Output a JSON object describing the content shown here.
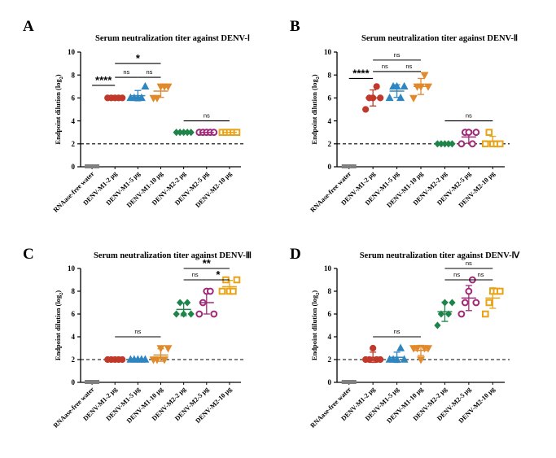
{
  "chart_data": [
    {
      "type": "scatter",
      "panel": "A",
      "title": "Serum neutralization titer against DENV-Ⅰ",
      "ylabel_main": "Endpoint dilution (log",
      "ylabel_sub": "2",
      "ylabel_end": ")",
      "ylim": [
        0,
        10
      ],
      "yticks": [
        "0",
        "2",
        "4",
        "6",
        "8",
        "10"
      ],
      "threshold": 2,
      "categories": [
        "RNAase-free water",
        "DENV-M1-2 μg",
        "DENV-M1-5 μg",
        "DENV-M1-10 μg",
        "DENV-M2-2 μg",
        "DENV-M2-5 μg",
        "DENV-M2-10 μg"
      ],
      "groups": [
        {
          "marker": "bar",
          "color": "#808080",
          "points": [
            0,
            0,
            0,
            0
          ],
          "mean": 0,
          "sd": 0
        },
        {
          "marker": "circle",
          "color": "#c0392b",
          "points": [
            6,
            6,
            6,
            6,
            6
          ],
          "mean": 6,
          "sd": 0
        },
        {
          "marker": "triangle",
          "color": "#2e86c1",
          "points": [
            6,
            6,
            6,
            6,
            7
          ],
          "mean": 6.2,
          "sd": 0.45
        },
        {
          "marker": "tri-down",
          "color": "#e08a2c",
          "points": [
            6,
            6,
            7,
            7,
            7
          ],
          "mean": 6.6,
          "sd": 0.55
        },
        {
          "marker": "diamond",
          "color": "#1e8449",
          "points": [
            3,
            3,
            3,
            3,
            3
          ],
          "mean": 3,
          "sd": 0
        },
        {
          "marker": "hex",
          "color": "#a02878",
          "points": [
            3,
            3,
            3,
            3,
            3
          ],
          "mean": 3,
          "sd": 0
        },
        {
          "marker": "square",
          "color": "#e8a317",
          "points": [
            3,
            3,
            3,
            3,
            3
          ],
          "mean": 3,
          "sd": 0
        }
      ],
      "annotations": [
        {
          "from": 0,
          "to": 1,
          "y": 7.1,
          "text": "****",
          "kind": "star"
        },
        {
          "from": 1,
          "to": 2,
          "y": 7.8,
          "text": "ns",
          "kind": "ns"
        },
        {
          "from": 2,
          "to": 3,
          "y": 7.8,
          "text": "ns",
          "kind": "ns"
        },
        {
          "from": 1,
          "to": 3,
          "y": 9.0,
          "text": "*",
          "kind": "star"
        },
        {
          "from": 4,
          "to": 6,
          "y": 4.0,
          "text": "ns",
          "kind": "ns"
        }
      ]
    },
    {
      "type": "scatter",
      "panel": "B",
      "title": "Serum neutralization titer against DENV-Ⅱ",
      "ylabel_main": "Endpoint dilution (log",
      "ylabel_sub": "2",
      "ylabel_end": ")",
      "ylim": [
        0,
        10
      ],
      "yticks": [
        "0",
        "2",
        "4",
        "6",
        "8",
        "10"
      ],
      "threshold": 2,
      "categories": [
        "RNAase-free water",
        "DENV-M1-2 μg",
        "DENV-M1-5 μg",
        "DENV-M1-10 μg",
        "DENV-M2-2 μg",
        "DENV-M2-5 μg",
        "DENV-M2-10 μg"
      ],
      "groups": [
        {
          "marker": "bar",
          "color": "#808080",
          "points": [
            0,
            0,
            0,
            0
          ],
          "mean": 0,
          "sd": 0
        },
        {
          "marker": "circle",
          "color": "#c0392b",
          "points": [
            5,
            6,
            6,
            7,
            6
          ],
          "mean": 6,
          "sd": 0.7
        },
        {
          "marker": "triangle",
          "color": "#2e86c1",
          "points": [
            6,
            7,
            7,
            6,
            7
          ],
          "mean": 6.6,
          "sd": 0.55
        },
        {
          "marker": "tri-down",
          "color": "#e08a2c",
          "points": [
            6,
            7,
            7,
            8,
            7
          ],
          "mean": 7,
          "sd": 0.7
        },
        {
          "marker": "diamond",
          "color": "#1e8449",
          "points": [
            2,
            2,
            2,
            2,
            2
          ],
          "mean": 2,
          "sd": 0
        },
        {
          "marker": "hex",
          "color": "#a02878",
          "points": [
            2,
            3,
            3,
            2,
            3
          ],
          "mean": 2.6,
          "sd": 0.55
        },
        {
          "marker": "square",
          "color": "#e8a317",
          "points": [
            2,
            3,
            2,
            2,
            2
          ],
          "mean": 2.2,
          "sd": 0.45
        }
      ],
      "annotations": [
        {
          "from": 0,
          "to": 1,
          "y": 7.7,
          "text": "****",
          "kind": "star"
        },
        {
          "from": 1,
          "to": 2,
          "y": 8.3,
          "text": "ns",
          "kind": "ns"
        },
        {
          "from": 2,
          "to": 3,
          "y": 8.3,
          "text": "ns",
          "kind": "ns"
        },
        {
          "from": 1,
          "to": 3,
          "y": 9.3,
          "text": "ns",
          "kind": "ns"
        },
        {
          "from": 4,
          "to": 6,
          "y": 4.0,
          "text": "ns",
          "kind": "ns"
        }
      ]
    },
    {
      "type": "scatter",
      "panel": "C",
      "title": "Serum neutralization titer against DENV-Ⅲ",
      "ylabel_main": "Endpoint dilution (log",
      "ylabel_sub": "2",
      "ylabel_end": ")",
      "ylim": [
        0,
        10
      ],
      "yticks": [
        "0",
        "2",
        "4",
        "6",
        "8",
        "10"
      ],
      "threshold": 2,
      "categories": [
        "RNAase-free water",
        "DENV-M1-2 μg",
        "DENV-M1-5 μg",
        "DENV-M1-10 μg",
        "DENV-M2-2 μg",
        "DENV-M2-5 μg",
        "DENV-M2-10 μg"
      ],
      "groups": [
        {
          "marker": "bar",
          "color": "#808080",
          "points": [
            0,
            0,
            0,
            0
          ],
          "mean": 0,
          "sd": 0
        },
        {
          "marker": "circle",
          "color": "#c0392b",
          "points": [
            2,
            2,
            2,
            2,
            2
          ],
          "mean": 2,
          "sd": 0
        },
        {
          "marker": "triangle",
          "color": "#2e86c1",
          "points": [
            2,
            2,
            2,
            2,
            2
          ],
          "mean": 2,
          "sd": 0
        },
        {
          "marker": "tri-down",
          "color": "#e08a2c",
          "points": [
            2,
            2,
            3,
            2,
            3
          ],
          "mean": 2.4,
          "sd": 0.55
        },
        {
          "marker": "diamond",
          "color": "#1e8449",
          "points": [
            6,
            7,
            6,
            7,
            6
          ],
          "mean": 6.4,
          "sd": 0.55
        },
        {
          "marker": "hex",
          "color": "#a02878",
          "points": [
            6,
            7,
            8,
            8,
            6
          ],
          "mean": 7,
          "sd": 1
        },
        {
          "marker": "square",
          "color": "#e8a317",
          "points": [
            8,
            9,
            8,
            8,
            9
          ],
          "mean": 8.4,
          "sd": 0.55
        }
      ],
      "annotations": [
        {
          "from": 1,
          "to": 3,
          "y": 4.0,
          "text": "ns",
          "kind": "ns"
        },
        {
          "from": 4,
          "to": 5,
          "y": 9.0,
          "text": "ns",
          "kind": "ns"
        },
        {
          "from": 5,
          "to": 6,
          "y": 9.0,
          "text": "*",
          "kind": "star"
        },
        {
          "from": 4,
          "to": 6,
          "y": 10.0,
          "text": "**",
          "kind": "star"
        }
      ]
    },
    {
      "type": "scatter",
      "panel": "D",
      "title": "Serum neutralization titer against DENV-Ⅳ",
      "ylabel_main": "Endpoint dilution (log",
      "ylabel_sub": "2",
      "ylabel_end": ")",
      "ylim": [
        0,
        10
      ],
      "yticks": [
        "0",
        "2",
        "4",
        "6",
        "8",
        "10"
      ],
      "threshold": 2,
      "categories": [
        "RNAase-free water",
        "DENV-M1-2 μg",
        "DENV-M1-5 μg",
        "DENV-M1-10 μg",
        "DENV-M2-2 μg",
        "DENV-M2-5 μg",
        "DENV-M2-10 μg"
      ],
      "groups": [
        {
          "marker": "bar",
          "color": "#808080",
          "points": [
            0,
            0,
            0,
            0
          ],
          "mean": 0,
          "sd": 0
        },
        {
          "marker": "circle",
          "color": "#c0392b",
          "points": [
            2,
            2,
            3,
            2,
            2
          ],
          "mean": 2.2,
          "sd": 0.45
        },
        {
          "marker": "triangle",
          "color": "#2e86c1",
          "points": [
            2,
            2,
            2,
            3,
            2
          ],
          "mean": 2.2,
          "sd": 0.45
        },
        {
          "marker": "tri-down",
          "color": "#e08a2c",
          "points": [
            3,
            3,
            2,
            3,
            3
          ],
          "mean": 2.8,
          "sd": 0.45
        },
        {
          "marker": "diamond",
          "color": "#1e8449",
          "points": [
            5,
            6,
            7,
            6,
            7
          ],
          "mean": 6.2,
          "sd": 0.85
        },
        {
          "marker": "hex",
          "color": "#a02878",
          "points": [
            6,
            7,
            8,
            9,
            7
          ],
          "mean": 7.4,
          "sd": 1.1
        },
        {
          "marker": "square",
          "color": "#e8a317",
          "points": [
            6,
            7,
            8,
            8,
            8
          ],
          "mean": 7.4,
          "sd": 0.9
        }
      ],
      "annotations": [
        {
          "from": 1,
          "to": 3,
          "y": 4.0,
          "text": "ns",
          "kind": "ns"
        },
        {
          "from": 4,
          "to": 5,
          "y": 9.0,
          "text": "ns",
          "kind": "ns"
        },
        {
          "from": 5,
          "to": 6,
          "y": 9.0,
          "text": "ns",
          "kind": "ns"
        },
        {
          "from": 4,
          "to": 6,
          "y": 10.0,
          "text": "ns",
          "kind": "ns"
        }
      ]
    }
  ]
}
